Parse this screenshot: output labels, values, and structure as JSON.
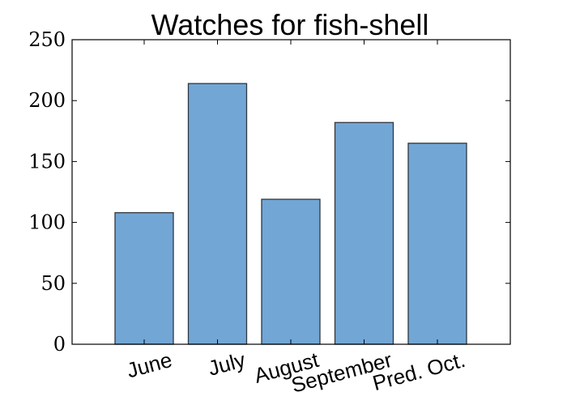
{
  "chart_data": {
    "type": "bar",
    "title": "Watches for fish-shell",
    "xlabel": "",
    "ylabel": "",
    "categories": [
      "June",
      "July",
      "August",
      "September",
      "Pred. Oct."
    ],
    "values": [
      108,
      214,
      119,
      182,
      165
    ],
    "ylim": [
      0,
      250
    ],
    "yticks": [
      "0",
      "50",
      "100",
      "150",
      "200",
      "250"
    ],
    "bar_color": "#72a6d5",
    "edge_color": "#2e3740",
    "grid": false,
    "xtick_rotation_deg": -15
  }
}
